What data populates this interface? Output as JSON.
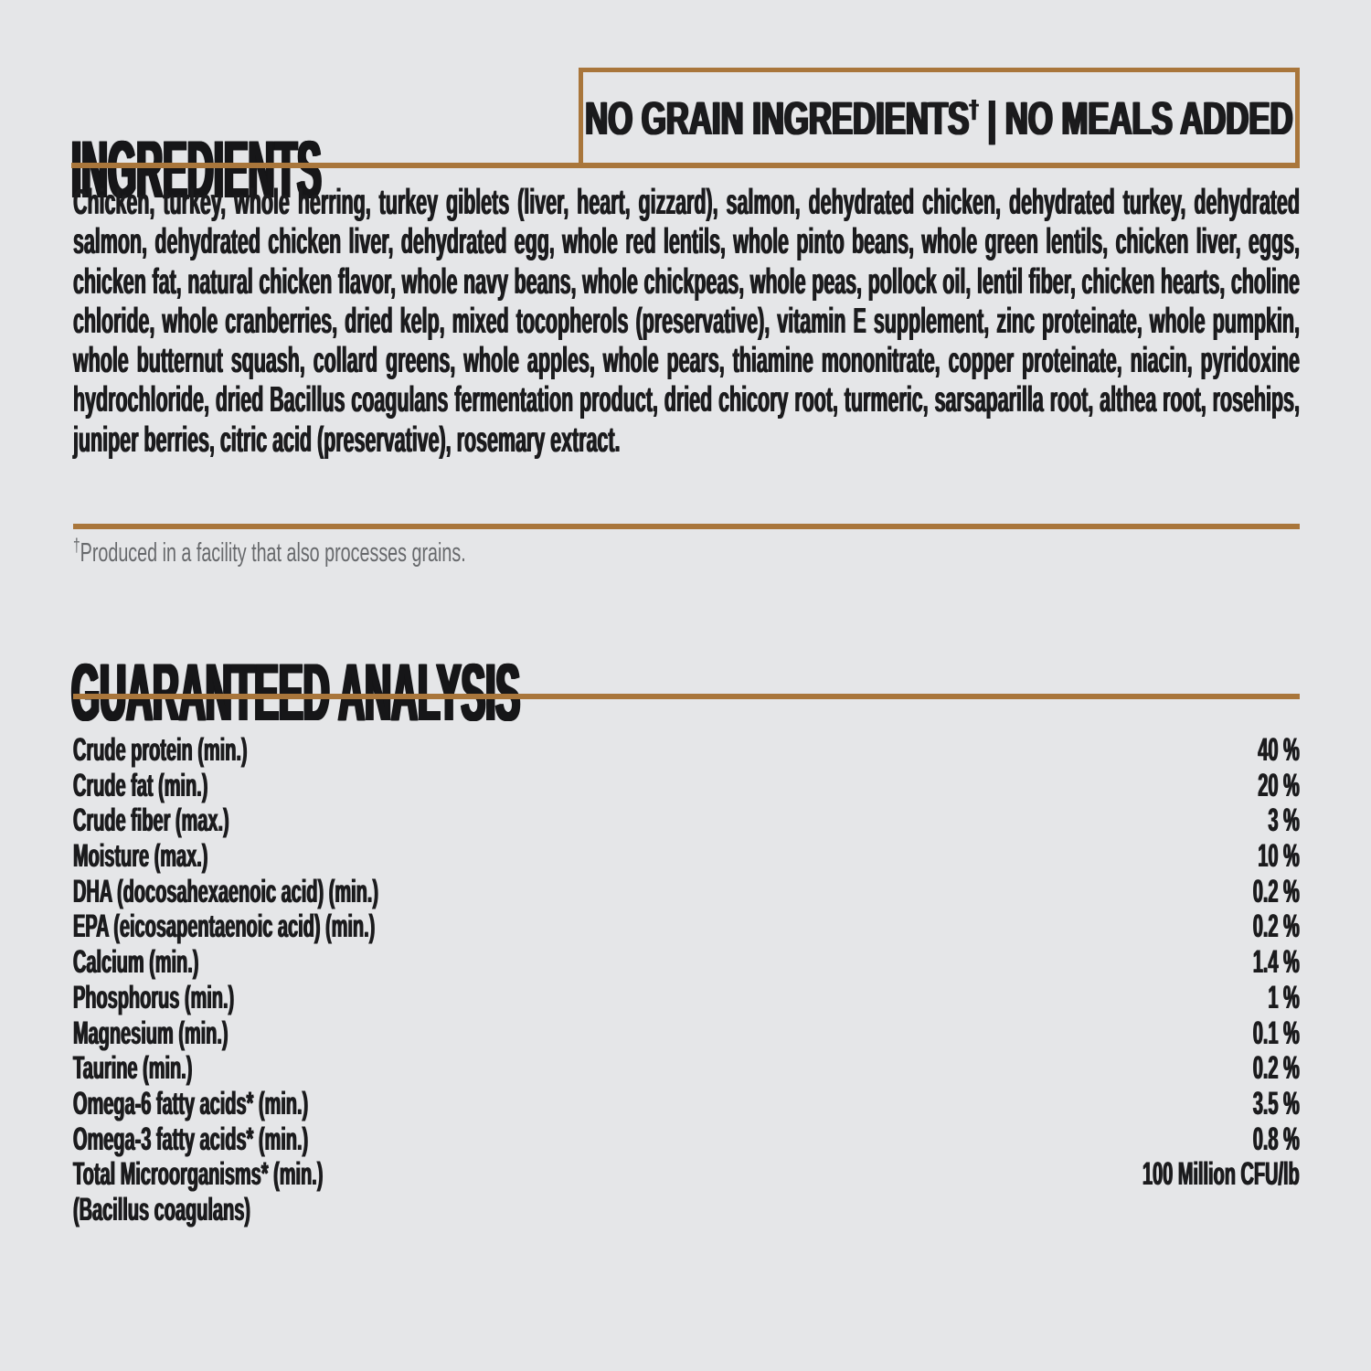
{
  "colors": {
    "background": "#e5e6e8",
    "accent_brown": "#a9763b",
    "text": "#1b1b1d",
    "muted_gray": "#67696c"
  },
  "ingredients": {
    "title": "INGREDIENTS",
    "badge": {
      "text_before_dagger": "NO GRAIN INGREDIENTS",
      "dagger": "†",
      "text_after_dagger": " | NO MEALS ADDED"
    },
    "body": "Chicken, turkey, whole herring, turkey giblets (liver, heart, gizzard), salmon, dehydrated chicken, dehydrated turkey, dehydrated salmon, dehydrated chicken liver, dehydrated egg, whole red lentils, whole pinto beans, whole green lentils, chicken liver, eggs, chicken fat, natural chicken flavor, whole navy beans, whole chickpeas, whole peas, pollock oil, lentil fiber, chicken hearts, choline chloride, whole cranberries, dried kelp, mixed tocopherols (preservative), vitamin E supplement, zinc proteinate, whole pumpkin, whole butternut squash, collard greens, whole apples, whole pears, thiamine mononitrate, copper proteinate, niacin, pyridoxine hydrochloride, dried Bacillus coagulans fermentation product, dried chicory root, turmeric, sarsaparilla root, althea root, rosehips, juniper berries, citric acid (preservative), rosemary extract.",
    "footnote_dagger": "†",
    "footnote_text": "Produced in a facility that also processes grains."
  },
  "analysis": {
    "title": "GUARANTEED ANALYSIS",
    "rows": [
      {
        "label": "Crude protein (min.)",
        "value": "40 %"
      },
      {
        "label": "Crude fat (min.)",
        "value": "20 %"
      },
      {
        "label": "Crude fiber (max.)",
        "value": "3 %"
      },
      {
        "label": "Moisture (max.)",
        "value": "10 %"
      },
      {
        "label": "DHA (docosahexaenoic acid) (min.)",
        "value": "0.2 %"
      },
      {
        "label": "EPA (eicosapentaenoic acid) (min.)",
        "value": "0.2 %"
      },
      {
        "label": "Calcium (min.)",
        "value": "1.4 %"
      },
      {
        "label": "Phosphorus (min.)",
        "value": "1 %"
      },
      {
        "label": "Magnesium (min.)",
        "value": "0.1 %"
      },
      {
        "label": "Taurine (min.)",
        "value": "0.2 %"
      },
      {
        "label": "Omega-6 fatty acids* (min.)",
        "value": "3.5 %"
      },
      {
        "label": "Omega-3 fatty acids* (min.)",
        "value": "0.8 %"
      },
      {
        "label": "Total Microorganisms* (min.)",
        "value": "100 Million CFU/lb"
      },
      {
        "label": "(Bacillus coagulans)",
        "value": ""
      }
    ]
  }
}
